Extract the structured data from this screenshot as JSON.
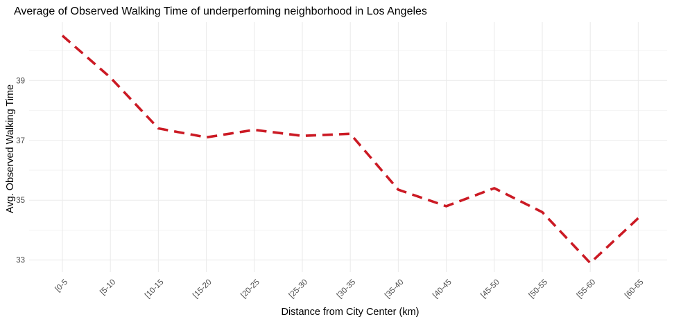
{
  "chart_data": {
    "type": "line",
    "title": "Average of Observed Walking Time of underperfoming neighborhood in Los Angeles",
    "xlabel": "Distance from City Center (km)",
    "ylabel": "Avg. Observed Walking Time",
    "categories": [
      "[0-5",
      "[5-10",
      "[10-15",
      "[15-20",
      "[20-25",
      "[25-30",
      "[30-35",
      "[35-40",
      "[40-45",
      "[45-50",
      "[50-55",
      "[55-60",
      "[60-65"
    ],
    "series": [
      {
        "values": [
          40.5,
          39.1,
          37.4,
          37.1,
          37.35,
          37.15,
          37.22,
          35.35,
          34.8,
          35.4,
          34.6,
          32.9,
          34.4
        ],
        "color": "#cb1a24",
        "line_style": "dashed"
      }
    ],
    "ylim": [
      32.6,
      40.95
    ],
    "yticks": [
      "33",
      "35",
      "37",
      "39"
    ],
    "grid": true,
    "legend": "none"
  }
}
